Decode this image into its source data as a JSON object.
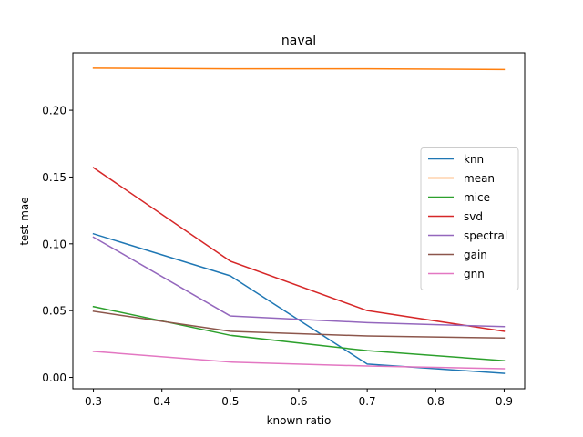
{
  "chart_data": {
    "type": "line",
    "title": "naval",
    "xlabel": "known ratio",
    "ylabel": "test mae",
    "x": [
      0.3,
      0.5,
      0.7,
      0.9
    ],
    "xlim": [
      0.27,
      0.93
    ],
    "ylim": [
      -0.0085,
      0.243
    ],
    "xticks": [
      0.3,
      0.4,
      0.5,
      0.6,
      0.7,
      0.8,
      0.9
    ],
    "xtick_labels": [
      "0.3",
      "0.4",
      "0.5",
      "0.6",
      "0.7",
      "0.8",
      "0.9"
    ],
    "yticks": [
      0.0,
      0.05,
      0.1,
      0.15,
      0.2
    ],
    "ytick_labels": [
      "0.00",
      "0.05",
      "0.10",
      "0.15",
      "0.20"
    ],
    "grid": false,
    "legend_position": "center-right",
    "series": [
      {
        "name": "knn",
        "color": "#1f77b4",
        "values": [
          0.1075,
          0.076,
          0.01,
          0.003
        ]
      },
      {
        "name": "mean",
        "color": "#ff7f0e",
        "values": [
          0.2315,
          0.231,
          0.231,
          0.2305
        ]
      },
      {
        "name": "mice",
        "color": "#2ca02c",
        "values": [
          0.053,
          0.0315,
          0.02,
          0.0125
        ]
      },
      {
        "name": "svd",
        "color": "#d62728",
        "values": [
          0.157,
          0.087,
          0.05,
          0.0345
        ]
      },
      {
        "name": "spectral",
        "color": "#9467bd",
        "values": [
          0.105,
          0.046,
          0.041,
          0.038
        ]
      },
      {
        "name": "gain",
        "color": "#8c564b",
        "values": [
          0.0495,
          0.0345,
          0.031,
          0.0295
        ]
      },
      {
        "name": "gnn",
        "color": "#e377c2",
        "values": [
          0.0195,
          0.0115,
          0.0085,
          0.0065
        ]
      }
    ]
  }
}
